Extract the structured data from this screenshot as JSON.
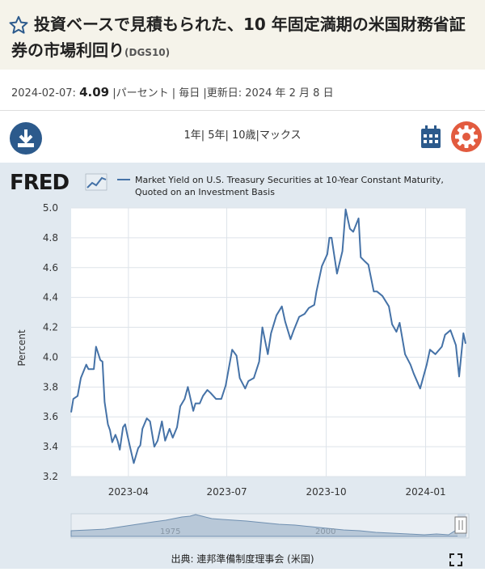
{
  "header": {
    "title": "投資ベースで見積もられた、10 年固定満期の米国財務省証券の市場利回り",
    "series_code": "(DGS10)"
  },
  "meta": {
    "date": "2024-02-07:",
    "value": "4.09",
    "details": "|パーセント | 毎日 |更新日: 2024 年 2 月 8 日"
  },
  "toolbar": {
    "download_icon": "download-icon",
    "ranges_label": "1年| 5年| 10歳|マックス",
    "calendar_icon": "calendar-icon",
    "settings_icon": "gear-icon"
  },
  "fred_logo": "FRED",
  "source_label": "出典: 連邦準備制度理事会 (米国)",
  "navigator_labels": [
    "1975",
    "2000"
  ],
  "colors": {
    "series": "#4572a7",
    "accent": "#e25b3f",
    "brand": "#2c5a8c"
  },
  "chart_data": {
    "type": "line",
    "title": "",
    "legend": "Market Yield on U.S. Treasury Securities at 10-Year Constant Maturity, Quoted on an Investment Basis",
    "legend_line2": "Quoted on an Investment Basis",
    "legend_line1": "Market Yield on U.S. Treasury Securities at 10-Year Constant Maturity,",
    "ylabel": "Percent",
    "xlabel": "",
    "ylim": [
      3.2,
      5.0
    ],
    "yticks": [
      "3.2",
      "3.4",
      "3.6",
      "3.8",
      "4.0",
      "4.2",
      "4.4",
      "4.6",
      "4.8",
      "5.0"
    ],
    "xlim": [
      "2023-02-07",
      "2024-02-07"
    ],
    "xticks": [
      {
        "date": "2023-04-01",
        "label": "2023-04"
      },
      {
        "date": "2023-07-01",
        "label": "2023-07"
      },
      {
        "date": "2023-10-01",
        "label": "2023-10"
      },
      {
        "date": "2024-01-01",
        "label": "2024-01"
      }
    ],
    "grid": true,
    "series": [
      {
        "name": "DGS10",
        "x": [
          "2023-02-07",
          "2023-02-09",
          "2023-02-13",
          "2023-02-16",
          "2023-02-21",
          "2023-02-23",
          "2023-02-28",
          "2023-03-02",
          "2023-03-06",
          "2023-03-08",
          "2023-03-10",
          "2023-03-13",
          "2023-03-15",
          "2023-03-17",
          "2023-03-20",
          "2023-03-22",
          "2023-03-24",
          "2023-03-27",
          "2023-03-29",
          "2023-03-31",
          "2023-04-04",
          "2023-04-06",
          "2023-04-10",
          "2023-04-12",
          "2023-04-14",
          "2023-04-18",
          "2023-04-21",
          "2023-04-25",
          "2023-04-28",
          "2023-05-02",
          "2023-05-05",
          "2023-05-09",
          "2023-05-12",
          "2023-05-16",
          "2023-05-19",
          "2023-05-23",
          "2023-05-26",
          "2023-05-31",
          "2023-06-02",
          "2023-06-06",
          "2023-06-09",
          "2023-06-13",
          "2023-06-16",
          "2023-06-21",
          "2023-06-26",
          "2023-06-30",
          "2023-07-06",
          "2023-07-10",
          "2023-07-13",
          "2023-07-18",
          "2023-07-21",
          "2023-07-26",
          "2023-07-31",
          "2023-08-03",
          "2023-08-08",
          "2023-08-11",
          "2023-08-16",
          "2023-08-21",
          "2023-08-24",
          "2023-08-29",
          "2023-09-01",
          "2023-09-06",
          "2023-09-11",
          "2023-09-15",
          "2023-09-20",
          "2023-09-22",
          "2023-09-27",
          "2023-10-02",
          "2023-10-04",
          "2023-10-06",
          "2023-10-11",
          "2023-10-16",
          "2023-10-19",
          "2023-10-23",
          "2023-10-26",
          "2023-10-31",
          "2023-11-02",
          "2023-11-06",
          "2023-11-09",
          "2023-11-14",
          "2023-11-17",
          "2023-11-22",
          "2023-11-28",
          "2023-12-01",
          "2023-12-05",
          "2023-12-08",
          "2023-12-13",
          "2023-12-18",
          "2023-12-21",
          "2023-12-27",
          "2024-01-02",
          "2024-01-05",
          "2024-01-10",
          "2024-01-16",
          "2024-01-19",
          "2024-01-24",
          "2024-01-29",
          "2024-02-01",
          "2024-02-05",
          "2024-02-07"
        ],
        "values": [
          3.63,
          3.72,
          3.74,
          3.86,
          3.95,
          3.92,
          3.92,
          4.07,
          3.98,
          3.97,
          3.7,
          3.55,
          3.51,
          3.43,
          3.48,
          3.44,
          3.38,
          3.53,
          3.55,
          3.48,
          3.35,
          3.29,
          3.39,
          3.41,
          3.52,
          3.59,
          3.57,
          3.4,
          3.44,
          3.57,
          3.44,
          3.52,
          3.46,
          3.53,
          3.67,
          3.72,
          3.8,
          3.64,
          3.69,
          3.69,
          3.74,
          3.78,
          3.76,
          3.72,
          3.72,
          3.81,
          4.05,
          4.01,
          3.86,
          3.79,
          3.84,
          3.86,
          3.97,
          4.2,
          4.02,
          4.16,
          4.28,
          4.34,
          4.24,
          4.12,
          4.18,
          4.27,
          4.29,
          4.33,
          4.35,
          4.44,
          4.61,
          4.69,
          4.8,
          4.8,
          4.56,
          4.71,
          4.99,
          4.86,
          4.84,
          4.93,
          4.67,
          4.64,
          4.62,
          4.44,
          4.44,
          4.41,
          4.34,
          4.22,
          4.17,
          4.23,
          4.02,
          3.95,
          3.89,
          3.79,
          3.95,
          4.05,
          4.02,
          4.07,
          4.15,
          4.18,
          4.08,
          3.87,
          4.16,
          4.09
        ]
      }
    ]
  }
}
